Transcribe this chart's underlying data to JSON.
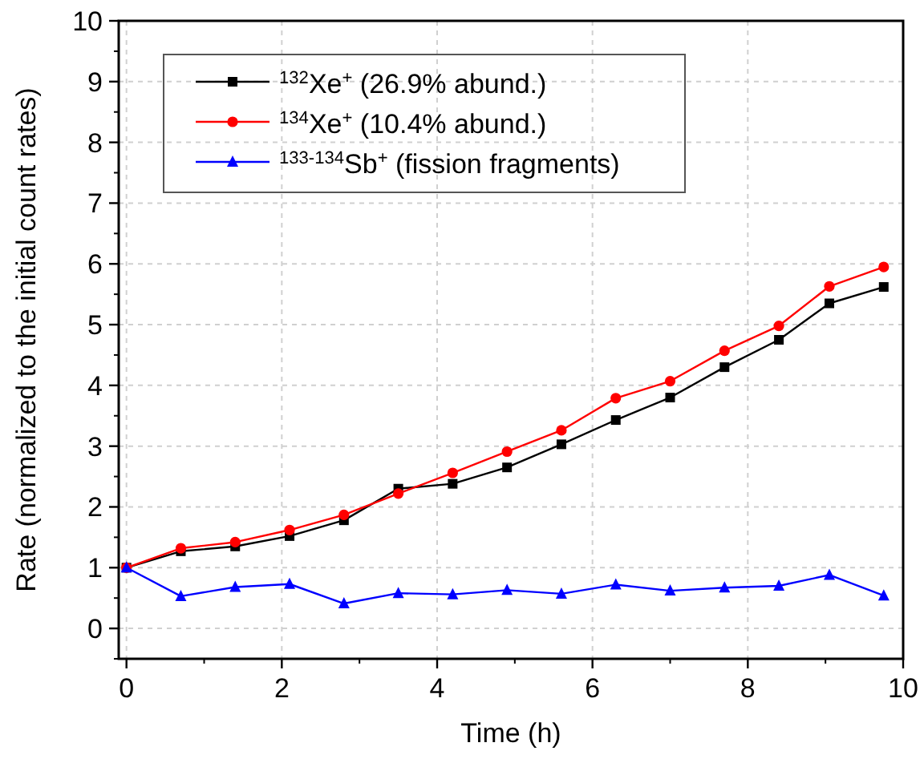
{
  "chart_data": {
    "type": "line",
    "xlabel": "Time (h)",
    "ylabel": "Rate (normalized to the initial count rates)",
    "x": [
      0,
      0.7,
      1.4,
      2.1,
      2.8,
      3.5,
      4.2,
      4.9,
      5.6,
      6.3,
      7.0,
      7.7,
      8.4,
      9.05,
      9.75
    ],
    "series": [
      {
        "name": "$^{132}$Xe$^{+}$ (26.9% abund.)",
        "color": "#000000",
        "marker": "square",
        "values": [
          1,
          1.27,
          1.35,
          1.52,
          1.78,
          2.3,
          2.38,
          2.65,
          3.03,
          3.43,
          3.8,
          4.3,
          4.75,
          5.35,
          5.62
        ]
      },
      {
        "name": "$^{134}$Xe$^{+}$ (10.4% abund.)",
        "color": "#ff0000",
        "marker": "circle",
        "values": [
          1,
          1.32,
          1.42,
          1.62,
          1.87,
          2.22,
          2.56,
          2.91,
          3.26,
          3.79,
          4.07,
          4.57,
          4.98,
          5.63,
          5.95
        ]
      },
      {
        "name": "$^{133-134}$Sb$^{+}$ (fission fragments)",
        "color": "#0000ff",
        "marker": "triangle",
        "values": [
          1,
          0.53,
          0.68,
          0.73,
          0.41,
          0.58,
          0.56,
          0.63,
          0.57,
          0.72,
          0.62,
          0.67,
          0.7,
          0.88,
          0.54
        ]
      }
    ],
    "xlim": [
      -0.1,
      10
    ],
    "xticks": [
      0,
      2,
      4,
      6,
      8,
      10
    ],
    "ylim": [
      -0.5,
      10
    ],
    "yticks": [
      0,
      1,
      2,
      3,
      4,
      5,
      6,
      7,
      8,
      9,
      10
    ],
    "grid": true,
    "legend": "top left"
  }
}
